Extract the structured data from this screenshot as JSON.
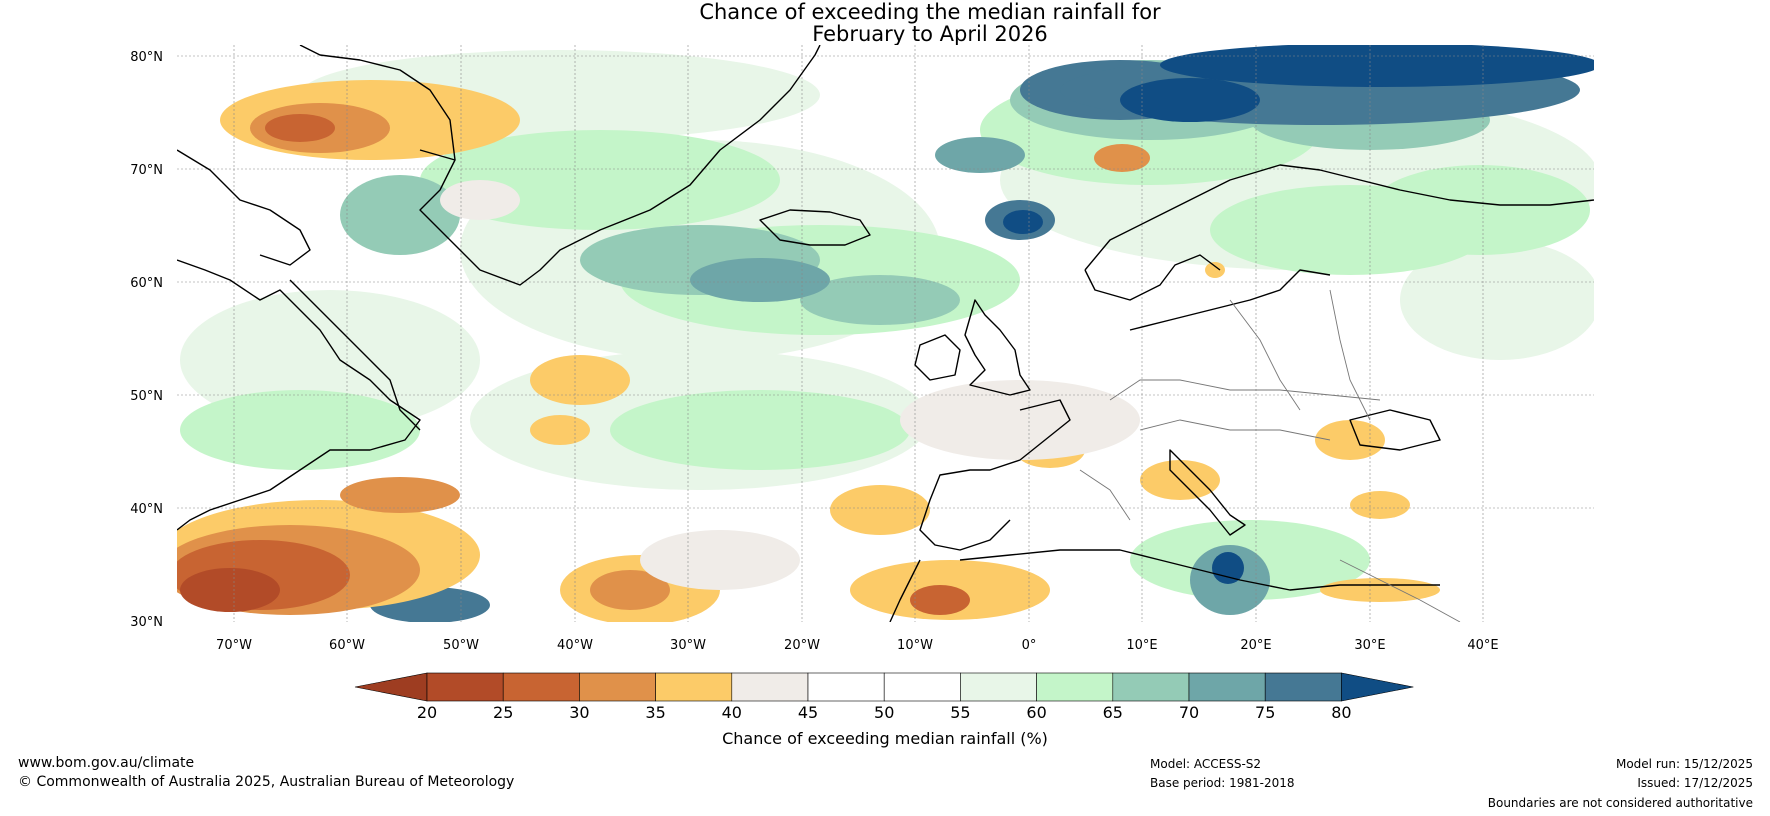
{
  "title": {
    "line1": "Chance of exceeding the median rainfall for",
    "line2": "February to April 2026"
  },
  "map": {
    "lat_labels": [
      "80°N",
      "70°N",
      "60°N",
      "50°N",
      "40°N",
      "30°N"
    ],
    "lon_labels": [
      "70°W",
      "60°W",
      "50°W",
      "40°W",
      "30°W",
      "20°W",
      "10°W",
      "0°",
      "10°E",
      "20°E",
      "30°E",
      "40°E"
    ]
  },
  "colorbar": {
    "label": "Chance of exceeding median rainfall (%)",
    "ticks": [
      "20",
      "25",
      "30",
      "35",
      "40",
      "45",
      "50",
      "55",
      "60",
      "65",
      "70",
      "75",
      "80"
    ],
    "colors": [
      "#9e3d21",
      "#b24b28",
      "#c86432",
      "#e0914a",
      "#fccb68",
      "#f0ece8",
      "#ffffff",
      "#ffffff",
      "#e8f6e8",
      "#c4f5c9",
      "#94cbb6",
      "#6ea6a8",
      "#457894",
      "#104d84"
    ]
  },
  "footer": {
    "website": "www.bom.gov.au/climate",
    "copyright": "© Commonwealth of Australia 2025, Australian Bureau of Meteorology",
    "model": "Model: ACCESS-S2",
    "base_period": "Base period: 1981-2018",
    "model_run": "Model run: 15/12/2025",
    "issued": "Issued: 17/12/2025",
    "disclaimer": "Boundaries are not considered authoritative"
  }
}
